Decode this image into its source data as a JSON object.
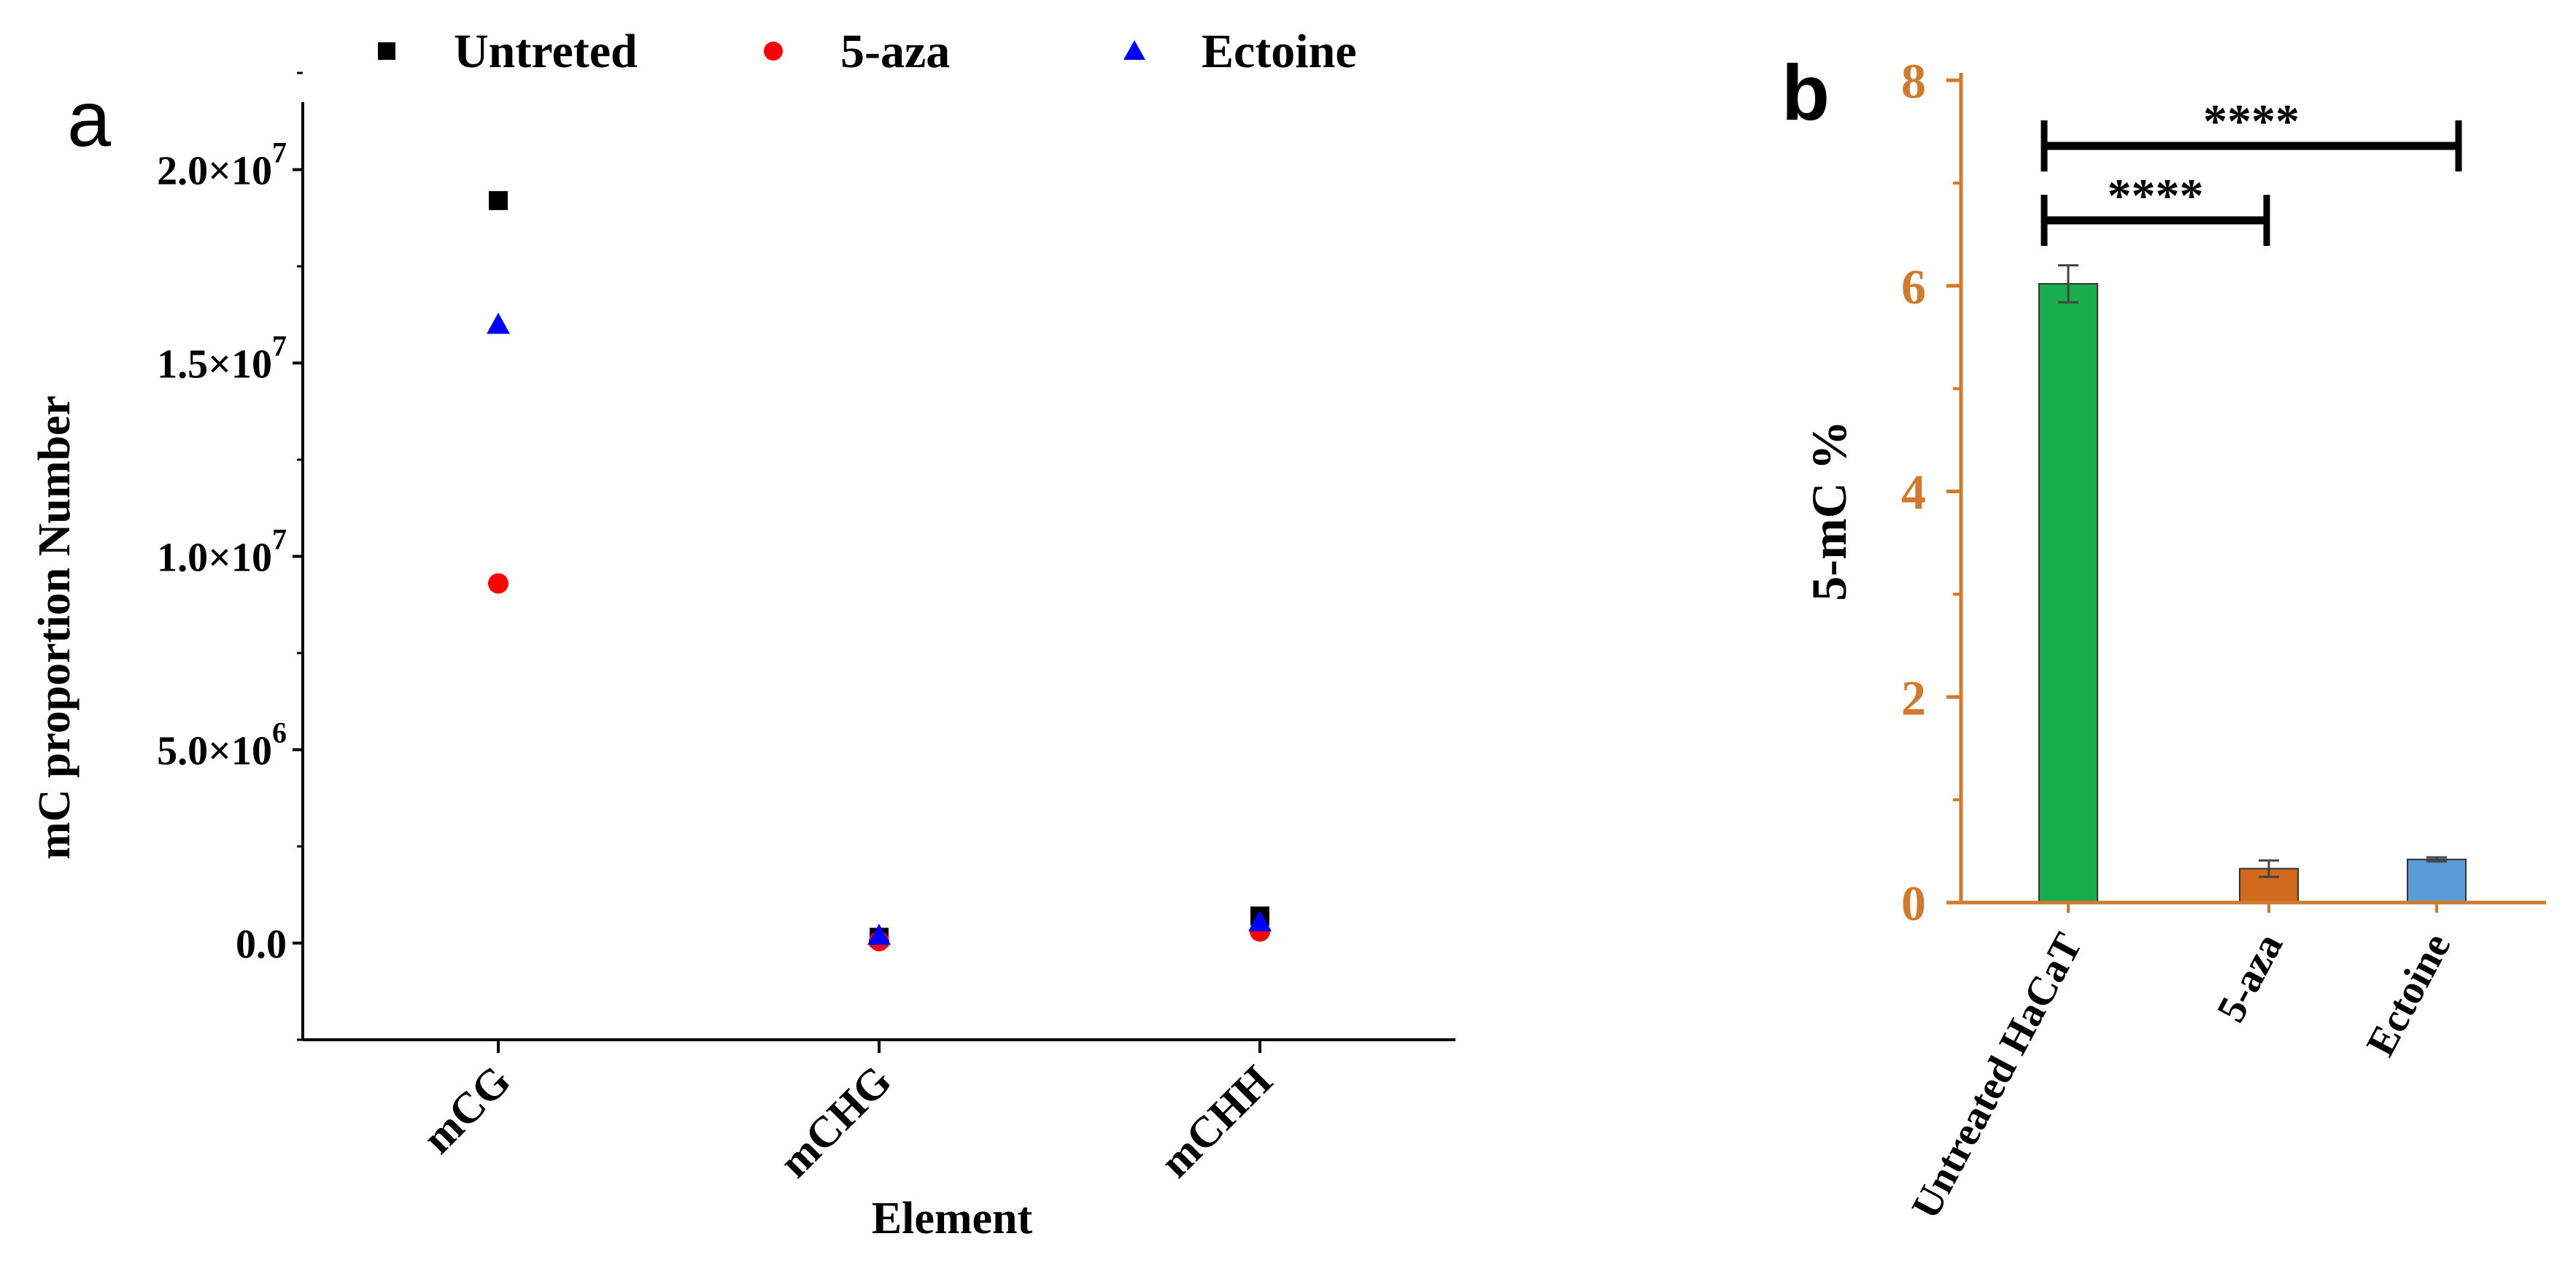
{
  "chart_data": [
    {
      "panel": "a",
      "type": "scatter",
      "xlabel": "Element",
      "ylabel": "mC proportion Number",
      "categories": [
        "mCG",
        "mCHG",
        "mCHH"
      ],
      "ylim": [
        -2500000,
        22500000
      ],
      "yticks": [
        {
          "value": 0,
          "label": "0.0",
          "sup": ""
        },
        {
          "value": 5000000,
          "label": "5.0×10",
          "sup": "6"
        },
        {
          "value": 10000000,
          "label": "1.0×10",
          "sup": "7"
        },
        {
          "value": 15000000,
          "label": "1.5×10",
          "sup": "7"
        },
        {
          "value": 20000000,
          "label": "2.0×10",
          "sup": "7"
        }
      ],
      "legend_position": "top",
      "series": [
        {
          "name": "Untreted",
          "marker": "square",
          "color": "#000000",
          "values": [
            19200000,
            150000,
            700000
          ]
        },
        {
          "name": "5-aza",
          "marker": "circle",
          "color": "#ff0000",
          "values": [
            9300000,
            50000,
            300000
          ]
        },
        {
          "name": "Ectoine",
          "marker": "triangle",
          "color": "#0000ff",
          "values": [
            16000000,
            200000,
            550000
          ]
        }
      ]
    },
    {
      "panel": "b",
      "type": "bar",
      "ylabel": "5-mC %",
      "categories": [
        "Untreated HaCaT",
        "5-aza",
        "Ectoine"
      ],
      "values": [
        6.02,
        0.33,
        0.42
      ],
      "errors": [
        0.18,
        0.08,
        0.02
      ],
      "colors": [
        "#1aad4e",
        "#cf6a1e",
        "#5b9bd5"
      ],
      "ylim": [
        0,
        8
      ],
      "yticks": [
        0,
        2,
        4,
        6,
        8
      ],
      "axis_color": "#cf7a2e",
      "significance": [
        {
          "from": 0,
          "to": 1,
          "label": "****"
        },
        {
          "from": 0,
          "to": 2,
          "label": "****"
        }
      ]
    }
  ],
  "colors": {
    "ink": "#000000",
    "axis_b": "#cf7a2e"
  }
}
